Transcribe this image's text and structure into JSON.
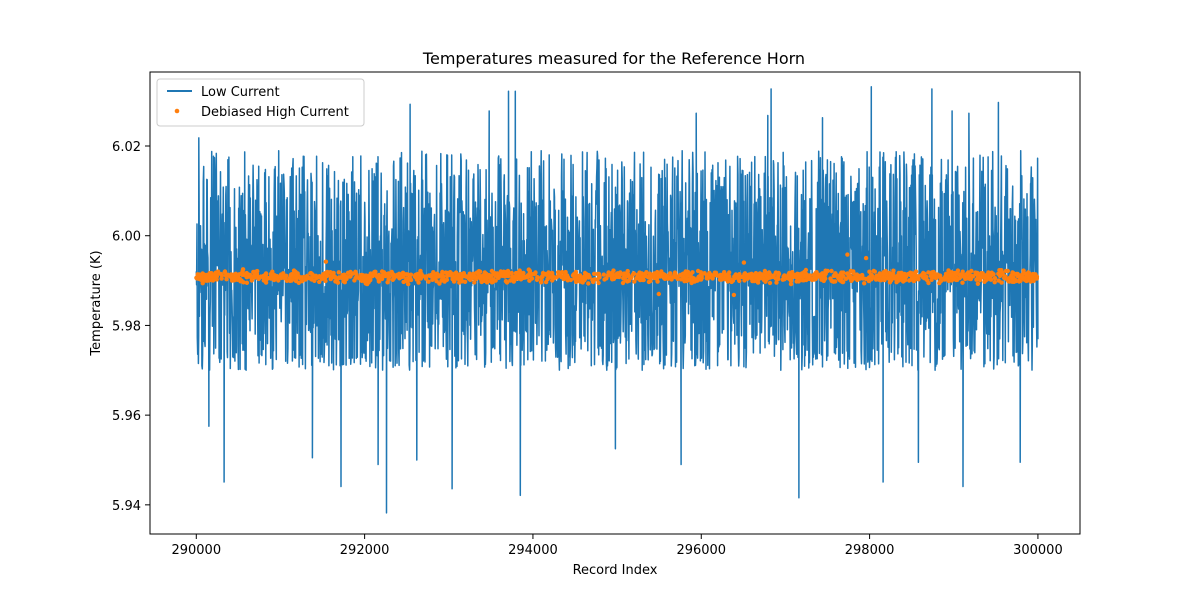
{
  "chart_data": {
    "type": "line",
    "title": "Temperatures measured for the Reference Horn",
    "xlabel": "Record Index",
    "ylabel": "Temperature (K)",
    "xlim": [
      289450,
      300500
    ],
    "ylim": [
      5.9335,
      6.0365
    ],
    "xticks": [
      290000,
      292000,
      294000,
      296000,
      298000,
      300000
    ],
    "yticks": [
      5.94,
      5.96,
      5.98,
      6.0,
      6.02
    ],
    "ytick_labels": [
      "5.94",
      "5.96",
      "5.98",
      "6.00",
      "6.02"
    ],
    "legend_position": "upper-left",
    "series": [
      {
        "name": "Low Current",
        "kind": "line",
        "color": "#1f77b4",
        "x_range": [
          290000,
          300000
        ],
        "center": 5.9905,
        "band_low": 5.975,
        "band_high": 6.0075,
        "typical_min": 5.97,
        "typical_max": 6.019,
        "spikes_high": [
          [
            290030,
            6.0218
          ],
          [
            293710,
            6.0322
          ],
          [
            293790,
            6.0322
          ],
          [
            292540,
            6.0293
          ],
          [
            298020,
            6.0332
          ],
          [
            298740,
            6.0327
          ],
          [
            296830,
            6.0327
          ],
          [
            295940,
            6.0273
          ],
          [
            293480,
            6.0278
          ],
          [
            299530,
            6.0297
          ],
          [
            297440,
            6.0263
          ],
          [
            298980,
            6.0278
          ],
          [
            299180,
            6.0273
          ],
          [
            296790,
            6.0268
          ]
        ],
        "spikes_low": [
          [
            292260,
            5.9382
          ],
          [
            293850,
            5.9421
          ],
          [
            297160,
            5.9416
          ],
          [
            299110,
            5.9441
          ],
          [
            290330,
            5.9451
          ],
          [
            291720,
            5.9441
          ],
          [
            293040,
            5.9436
          ],
          [
            298160,
            5.9451
          ],
          [
            290150,
            5.9575
          ],
          [
            292160,
            5.949
          ],
          [
            291380,
            5.9505
          ],
          [
            295760,
            5.949
          ],
          [
            298580,
            5.9495
          ],
          [
            292620,
            5.95
          ],
          [
            299790,
            5.9495
          ],
          [
            294980,
            5.9525
          ]
        ]
      },
      {
        "name": "Debiased High Current",
        "kind": "scatter",
        "color": "#ff7f0e",
        "x_range": [
          290000,
          300000
        ],
        "center": 5.9908,
        "spread_low": 5.989,
        "spread_high": 5.9927,
        "outliers_high": [
          5.9958,
          5.995,
          5.994,
          5.9942
        ],
        "outliers_low": [
          5.987,
          5.9868
        ]
      }
    ]
  }
}
